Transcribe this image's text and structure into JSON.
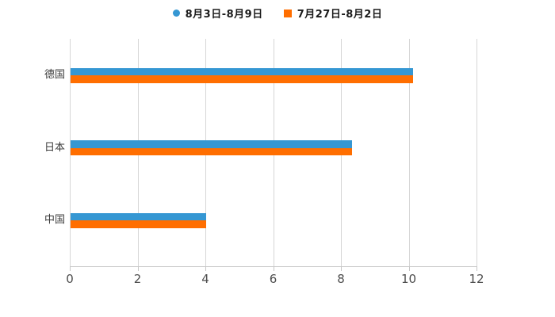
{
  "chart_data": {
    "type": "bar",
    "orientation": "horizontal",
    "title": "",
    "xlabel": "",
    "ylabel": "",
    "categories": [
      "德国",
      "日本",
      "中国"
    ],
    "series": [
      {
        "name": "8月3日-8月9日",
        "marker": "circle",
        "color": "#3597d3",
        "values": [
          10.1,
          8.3,
          4.0
        ]
      },
      {
        "name": "7月27日-8月2日",
        "marker": "square",
        "color": "#ff6e00",
        "values": [
          10.1,
          8.3,
          4.0
        ]
      }
    ],
    "xlim": [
      0,
      12
    ],
    "xticks": [
      0,
      2,
      4,
      6,
      8,
      10,
      12
    ],
    "grid": "vertical-gridlines-only",
    "legend_position": "top-center"
  },
  "colors": {
    "background": "#ffffff",
    "gridline": "#d6d6d6",
    "axis_line": "#c6c6c6",
    "tick_label": "#4d4d4d",
    "category_label": "#3b3b3b",
    "legend_text": "#1a1a1a"
  }
}
